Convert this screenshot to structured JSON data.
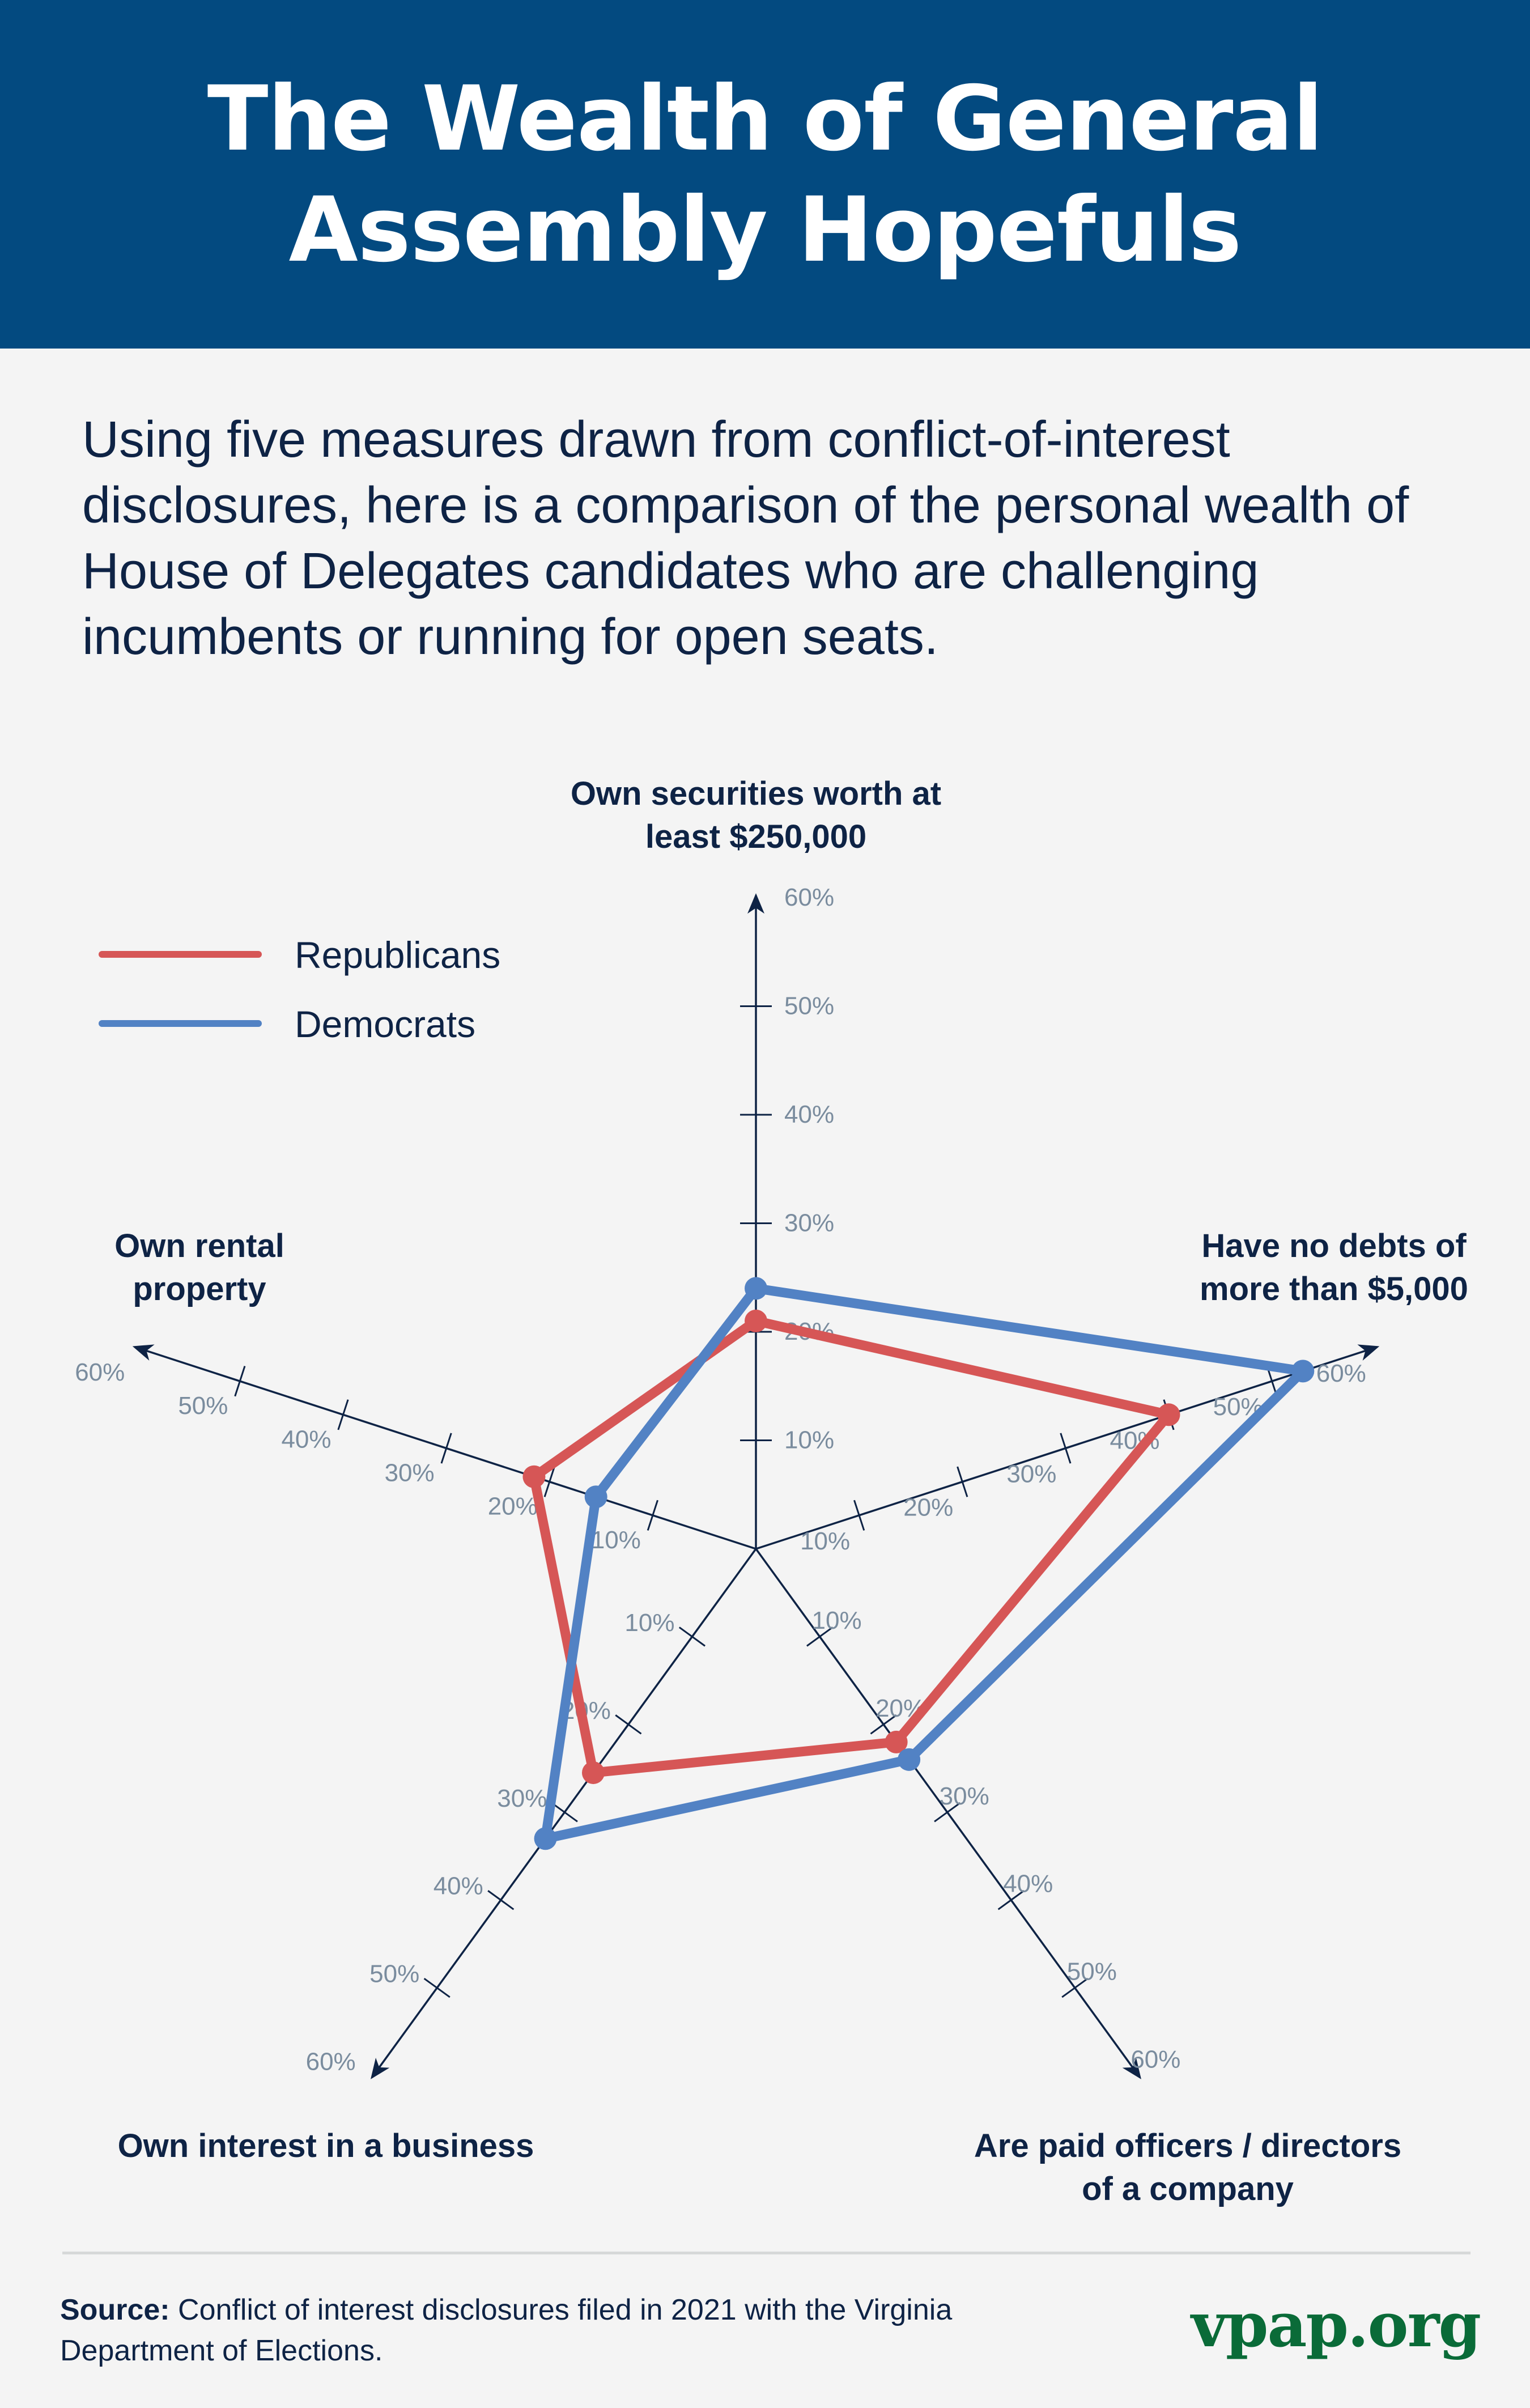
{
  "header": {
    "title_line1": "The Wealth of General",
    "title_line2": "Assembly Hopefuls"
  },
  "intro": "Using five measures drawn from conflict-of-interest disclosures, here is a comparison of the personal wealth of House of Delegates candidates who are challenging incumbents or running for open seats.",
  "colors": {
    "header_bg": "#034a80",
    "republicans": "#d65656",
    "democrats": "#5282c4",
    "axis": "#0e2345",
    "tick_label": "#7a8c9e",
    "brand": "#0a6b38"
  },
  "chart_data": {
    "type": "radar",
    "title": "",
    "axes": [
      {
        "label_lines": [
          "Own securities worth at",
          "least $250,000"
        ]
      },
      {
        "label_lines": [
          "Have no debts of",
          "more than $5,000"
        ]
      },
      {
        "label_lines": [
          "Are paid officers / directors",
          "of a company"
        ]
      },
      {
        "label_lines": [
          "Own interest in a business"
        ]
      },
      {
        "label_lines": [
          "Own rental",
          "property"
        ]
      }
    ],
    "categories": [
      "Own securities worth at least $250,000",
      "Have no debts of more than $5,000",
      "Are paid officers / directors of a company",
      "Own interest in a business",
      "Own rental property"
    ],
    "range": [
      0,
      60
    ],
    "ticks": [
      10,
      20,
      30,
      40,
      50,
      60
    ],
    "tick_labels": [
      "10%",
      "20%",
      "30%",
      "40%",
      "50%",
      "60%"
    ],
    "series": [
      {
        "name": "Republicans",
        "color": "#d65656",
        "values": [
          21,
          40,
          22,
          25.5,
          21.5
        ]
      },
      {
        "name": "Democrats",
        "color": "#5282c4",
        "values": [
          24,
          53,
          24,
          33,
          15.5
        ]
      }
    ],
    "legend": {
      "position": "top-left",
      "entries": [
        "Republicans",
        "Democrats"
      ]
    }
  },
  "footer": {
    "source_label": "Source:",
    "source_text": " Conflict of interest disclosures filed in 2021 with the Virginia Department of Elections.",
    "brand": "vpap.org"
  }
}
